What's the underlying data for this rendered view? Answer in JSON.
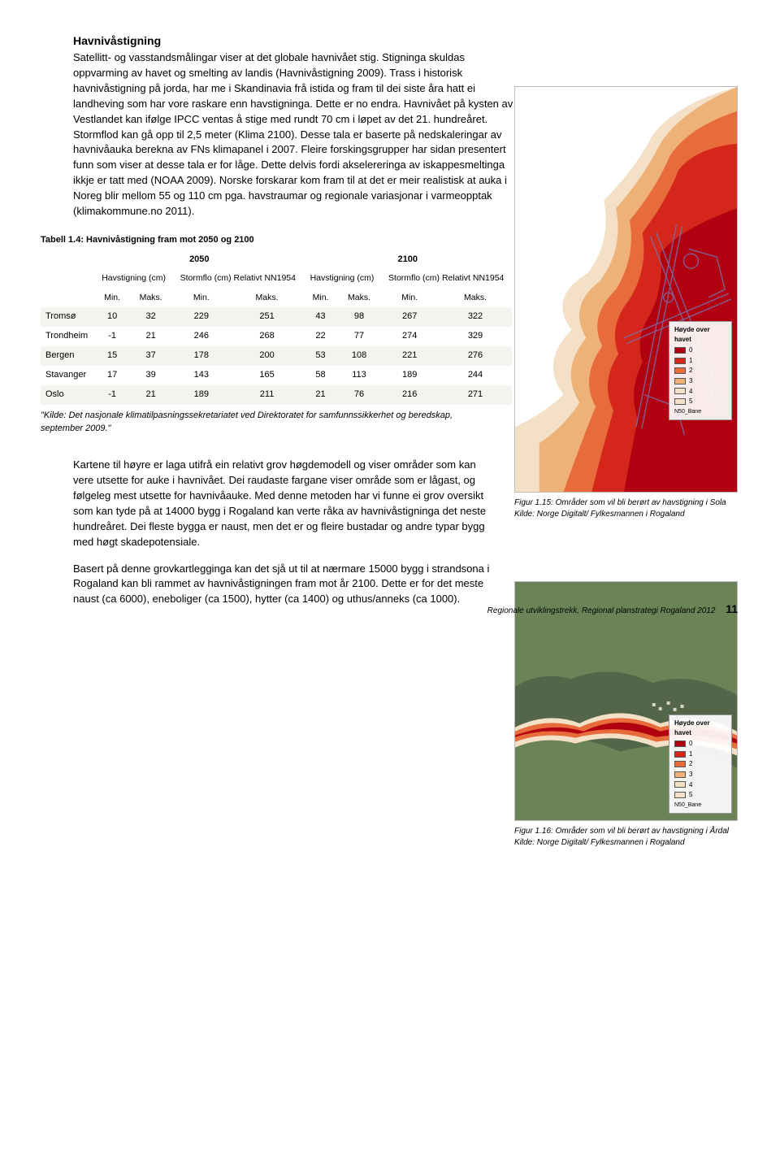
{
  "heading": "Havnivåstigning",
  "intro": "Satellitt- og vasstandsmålingar viser at det globale havnivået stig. Stigninga skuldas oppvarming av havet og smelting av landis (Havnivåstigning 2009). Trass i historisk havnivåstigning på jorda, har me i Skandinavia frå istida og fram til dei siste åra hatt ei landheving som har vore raskare enn havstigninga. Dette er no endra. Havnivået på kysten av Vestlandet kan ifølge IPCC ventas å stige med rundt 70 cm i løpet av det 21. hundreåret. Stormflod kan gå opp til 2,5 meter (Klima 2100). Desse tala er baserte på nedskaleringar av havnivåauka berekna av FNs klimapanel i 2007. Fleire forskingsgrupper har sidan presentert funn som viser at desse tala er for låge. Dette delvis fordi akselereringa av iskappesmeltinga ikkje er tatt med (NOAA 2009). Norske forskarar kom fram til at det er meir realistisk at auka i Noreg blir mellom 55 og 110 cm pga. havstraumar og regionale variasjonar i varmeopptak (klimakommune.no 2011).",
  "table": {
    "caption": "Tabell 1.4: Havnivåstigning fram mot 2050 og 2100",
    "year1": "2050",
    "year2": "2100",
    "sub1": "Havstigning (cm)",
    "sub2": "Stormflo (cm)\nRelativt NN1954",
    "sub3": "Havstigning (cm)",
    "sub4": "Stormflo (cm)\nRelativt NN1954",
    "min": "Min.",
    "maks": "Maks.",
    "rows": [
      {
        "city": "Tromsø",
        "v": [
          "10",
          "32",
          "229",
          "251",
          "43",
          "98",
          "267",
          "322"
        ]
      },
      {
        "city": "Trondheim",
        "v": [
          "-1",
          "21",
          "246",
          "268",
          "22",
          "77",
          "274",
          "329"
        ]
      },
      {
        "city": "Bergen",
        "v": [
          "15",
          "37",
          "178",
          "200",
          "53",
          "108",
          "221",
          "276"
        ]
      },
      {
        "city": "Stavanger",
        "v": [
          "17",
          "39",
          "143",
          "165",
          "58",
          "113",
          "189",
          "244"
        ]
      },
      {
        "city": "Oslo",
        "v": [
          "-1",
          "21",
          "189",
          "211",
          "21",
          "76",
          "216",
          "271"
        ]
      }
    ],
    "note": "\"Kilde: Det nasjonale klimatilpasningssekretariatet ved Direktoratet for samfunnssikkerhet og beredskap, september 2009.\""
  },
  "mid1": "Kartene til høyre er laga utifrå ein relativt grov høgdemodell og viser områder som kan vere utsette for auke i havnivået. Dei raudaste fargane viser område som er lågast, og følgeleg mest utsette for havnivåauke. Med denne metoden har vi funne ei grov oversikt som kan tyde på at 14000 bygg i Rogaland kan verte råka av havnivåstigninga det neste hundreåret. Dei fleste bygga er naust, men det er og fleire bustadar og andre typar bygg med høgt skadepotensiale.",
  "mid2": "Basert på denne grovkartlegginga kan det sjå ut til at nærmare 15000 bygg i strandsona i Rogaland kan bli rammet av havnivåstigningen fram mot år 2100. Dette er for det meste naust (ca 6000), eneboliger (ca 1500), hytter (ca 1400) og uthus/anneks (ca 1000).",
  "fig1": "Figur 1.15: Områder som vil bli berørt av havstigning i Sola   Kilde: Norge Digitalt/ Fylkesmannen i Rogaland",
  "fig2": "Figur 1.16: Områder som vil bli berørt av havstigning i Årdal   Kilde: Norge Digitalt/ Fylkesmannen i Rogaland",
  "legend": {
    "title": "Høyde over havet",
    "items": [
      {
        "label": "0",
        "color": "#b10010"
      },
      {
        "label": "1",
        "color": "#d4261b"
      },
      {
        "label": "2",
        "color": "#e86b3b"
      },
      {
        "label": "3",
        "color": "#eeb178"
      },
      {
        "label": "4",
        "color": "#f4e0c6"
      },
      {
        "label": "5",
        "color": "#f4e0c6"
      }
    ],
    "src1": "N50_Bane",
    "src2": "N50_Bane"
  },
  "footer": "Regionale utviklingstrekk, Regional planstrategi Rogaland 2012",
  "pagenum": "11",
  "colors": {
    "sea": "#ffffff",
    "land": "#a8c08a",
    "land_dark": "#6a8457",
    "satellite": "#53664a",
    "runway": "#7b6fa8"
  }
}
